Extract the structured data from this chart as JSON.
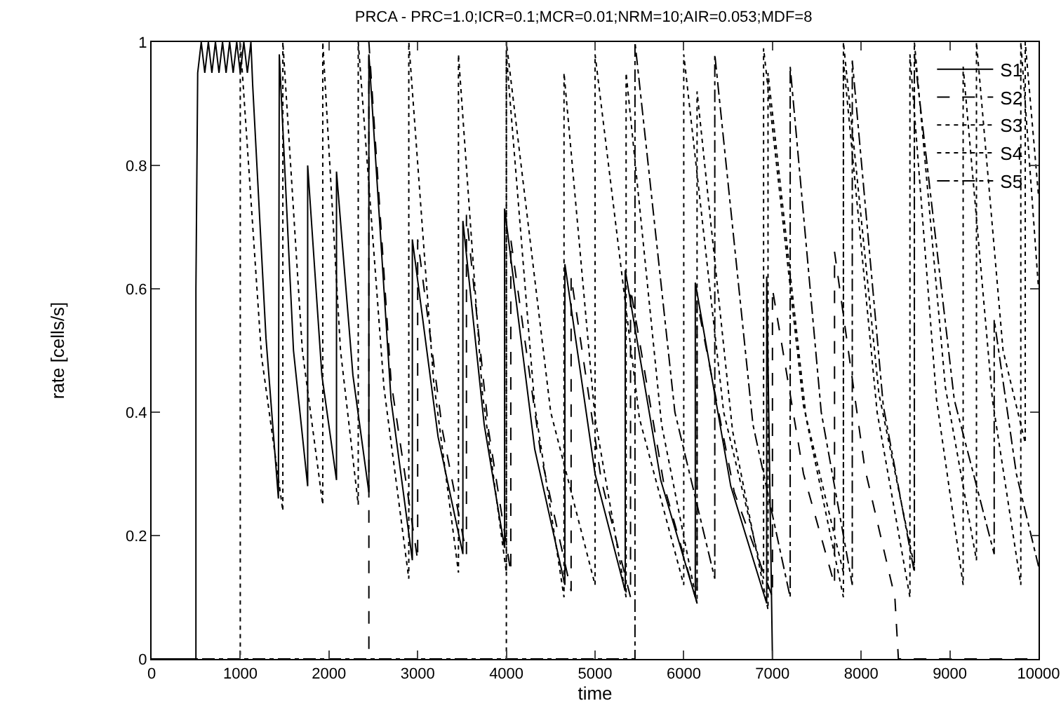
{
  "chart_data": {
    "type": "line",
    "title": "PRCA - PRC=1.0;ICR=0.1;MCR=0.01;NRM=10;AIR=0.053;MDF=8",
    "xlabel": "time",
    "ylabel": "rate [cells/s]",
    "xlim": [
      0,
      10000
    ],
    "xticks": [
      0,
      1000,
      2000,
      3000,
      4000,
      5000,
      6000,
      7000,
      8000,
      9000,
      10000
    ],
    "ylim": [
      0,
      1
    ],
    "yticks": [
      0,
      0.2,
      0.4,
      0.6,
      0.8,
      1
    ],
    "grid": false,
    "legend": "top right",
    "marker": "none",
    "series": [
      {
        "name": "S1",
        "color": "#000000",
        "line_style": "solid",
        "x": [
          0,
          500,
          500,
          520,
          560,
          600,
          640,
          680,
          720,
          760,
          800,
          840,
          880,
          920,
          960,
          1000,
          1040,
          1080,
          1120,
          1140,
          1290,
          1430,
          1440,
          1600,
          1760,
          1760,
          1920,
          2085,
          2085,
          2270,
          2450,
          2450,
          2700,
          2940,
          2940,
          3230,
          3510,
          3510,
          3750,
          3980,
          3980,
          4320,
          4660,
          4660,
          5000,
          5340,
          5340,
          5740,
          6130,
          6130,
          6530,
          6935,
          6935,
          7000
        ],
        "values": [
          0,
          0,
          0.6,
          0.95,
          1,
          0.95,
          1,
          0.95,
          1,
          0.95,
          1,
          0.95,
          1,
          0.95,
          1,
          0.95,
          1,
          0.95,
          1,
          0.93,
          0.52,
          0.26,
          0.98,
          0.5,
          0.28,
          0.8,
          0.46,
          0.29,
          0.79,
          0.46,
          0.27,
          0.98,
          0.42,
          0.16,
          0.68,
          0.36,
          0.17,
          0.71,
          0.38,
          0.18,
          0.73,
          0.34,
          0.12,
          0.64,
          0.3,
          0.11,
          0.63,
          0.29,
          0.1,
          0.61,
          0.28,
          0.09,
          0.62,
          0
        ]
      },
      {
        "name": "S2",
        "color": "#000000",
        "line_style": "dashed",
        "x": [
          0,
          2450,
          2450,
          2700,
          3000,
          3000,
          3280,
          3550,
          3550,
          3800,
          4050,
          4050,
          4390,
          4730,
          4730,
          5070,
          5400,
          5400,
          5780,
          6150,
          6150,
          6570,
          7000,
          7000,
          7350,
          7700,
          7700,
          8040,
          8380,
          8420,
          10000
        ],
        "values": [
          0,
          0,
          1,
          0.45,
          0.16,
          0.68,
          0.37,
          0.17,
          0.72,
          0.37,
          0.14,
          0.68,
          0.33,
          0.11,
          0.62,
          0.29,
          0.1,
          0.6,
          0.28,
          0.09,
          0.58,
          0.27,
          0.1,
          0.6,
          0.3,
          0.12,
          0.66,
          0.31,
          0.1,
          0,
          0
        ]
      },
      {
        "name": "S3",
        "color": "#000000",
        "line_style": "dotted",
        "x": [
          0,
          1000,
          1000,
          1240,
          1480,
          1480,
          1700,
          1930,
          1930,
          2130,
          2330,
          2330,
          2620,
          2900,
          2900,
          3180,
          3460,
          3460,
          3730,
          4000,
          4000,
          4320,
          4650,
          4650,
          5000,
          5350,
          5350,
          5750,
          6150,
          6150,
          6550,
          6950,
          6950,
          7380,
          7800,
          7800,
          8180,
          8550,
          8550,
          8850,
          9150,
          9150,
          9480,
          9800,
          9800,
          10000
        ],
        "values": [
          0,
          0,
          1,
          0.49,
          0.24,
          1,
          0.5,
          0.25,
          1,
          0.5,
          0.25,
          1,
          0.44,
          0.13,
          1,
          0.45,
          0.14,
          0.98,
          0.43,
          0.14,
          0.98,
          0.41,
          0.1,
          0.95,
          0.39,
          0.1,
          0.95,
          0.38,
          0.09,
          0.92,
          0.37,
          0.08,
          0.95,
          0.39,
          0.1,
          0.97,
          0.4,
          0.1,
          0.98,
          0.42,
          0.12,
          0.96,
          0.42,
          0.12,
          1,
          0.6
        ]
      },
      {
        "name": "S4",
        "color": "#000000",
        "line_style": "dotted",
        "x": [
          0,
          4000,
          4000,
          4500,
          5000,
          5000,
          5500,
          6000,
          6000,
          6450,
          6900,
          6900,
          7350,
          7800,
          7800,
          8200,
          8600,
          8600,
          8950,
          9300,
          9300,
          9600,
          9850,
          9850,
          10000
        ],
        "values": [
          0,
          0,
          1,
          0.4,
          0.12,
          0.98,
          0.39,
          0.12,
          0.98,
          0.4,
          0.13,
          0.99,
          0.41,
          0.14,
          1,
          0.43,
          0.15,
          1,
          0.44,
          0.16,
          1,
          0.5,
          0.35,
          1,
          0.75
        ]
      },
      {
        "name": "S5",
        "color": "#000000",
        "line_style": "dashdot",
        "x": [
          0,
          5450,
          5450,
          5900,
          6350,
          6350,
          6780,
          7200,
          7200,
          7550,
          7900,
          7900,
          8250,
          8600,
          8600,
          9050,
          9500,
          9500,
          9750,
          10000
        ],
        "values": [
          0,
          0,
          1,
          0.4,
          0.13,
          0.98,
          0.38,
          0.1,
          0.96,
          0.4,
          0.12,
          0.97,
          0.41,
          0.14,
          0.98,
          0.42,
          0.17,
          0.55,
          0.3,
          0.15
        ]
      }
    ]
  }
}
